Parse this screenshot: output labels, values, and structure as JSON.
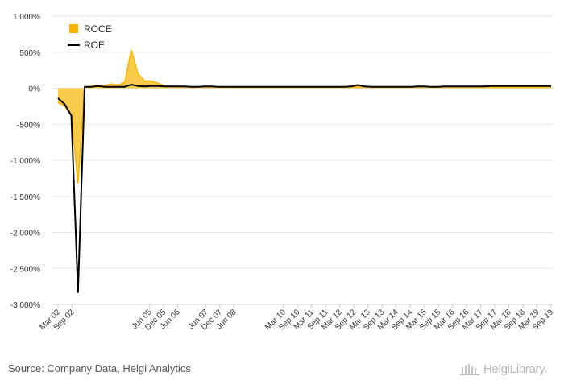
{
  "chart_data": {
    "type": "area",
    "ylim": [
      -3000,
      1000
    ],
    "yticks": [
      1000,
      500,
      0,
      -500,
      -1000,
      -1500,
      -2000,
      -2500,
      -3000
    ],
    "ytick_labels": [
      "1 000%",
      "500%",
      "0%",
      "-500%",
      "-1 000%",
      "-1 500%",
      "-2 000%",
      "-2 500%",
      "-3 000%"
    ],
    "x_start": "Mar 02",
    "xtick_labels": [
      "Mar 02",
      "Sep 02",
      "Jun 05",
      "Dec 05",
      "Jun 06",
      "Jun 07",
      "Dec 07",
      "Jun 08",
      "Mar 10",
      "Sep 10",
      "Mar 11",
      "Sep 11",
      "Mar 12",
      "Sep 12",
      "Mar 13",
      "Sep 13",
      "Mar 14",
      "Sep 14",
      "Mar 15",
      "Sep 15",
      "Mar 16",
      "Sep 16",
      "Mar 17",
      "Sep 17",
      "Mar 18",
      "Sep 18",
      "Mar 19",
      "Sep 19"
    ],
    "legend_position": "top-left",
    "grid": true,
    "series": [
      {
        "name": "ROCE",
        "kind": "area",
        "color": "#f7b500",
        "values": [
          -200,
          -250,
          -380,
          -1320,
          20,
          25,
          45,
          40,
          60,
          45,
          80,
          530,
          200,
          100,
          100,
          70,
          30,
          30,
          25,
          25,
          20,
          20,
          20,
          20,
          20,
          15,
          15,
          15,
          15,
          15,
          15,
          15,
          15,
          15,
          15,
          15,
          15,
          15,
          15,
          15,
          15,
          15,
          15,
          15,
          20,
          20,
          20,
          20,
          20,
          20,
          20,
          20,
          20,
          20,
          20,
          20,
          20,
          20,
          20,
          20,
          20,
          20,
          20,
          20,
          20,
          20,
          20,
          20,
          20,
          20,
          20,
          20,
          20,
          20,
          20
        ]
      },
      {
        "name": "ROE",
        "kind": "line",
        "color": "#000000",
        "values": [
          -140,
          -220,
          -380,
          -2830,
          20,
          20,
          30,
          20,
          20,
          20,
          20,
          50,
          30,
          25,
          30,
          30,
          25,
          25,
          25,
          25,
          20,
          20,
          25,
          25,
          20,
          20,
          20,
          20,
          20,
          20,
          20,
          20,
          20,
          20,
          20,
          20,
          20,
          20,
          20,
          20,
          20,
          20,
          20,
          20,
          25,
          45,
          25,
          20,
          20,
          20,
          20,
          20,
          20,
          20,
          25,
          25,
          20,
          20,
          25,
          25,
          25,
          25,
          25,
          25,
          25,
          30,
          30,
          30,
          30,
          30,
          30,
          30,
          30,
          30,
          30
        ]
      }
    ]
  },
  "footer": {
    "source": "Source: Company Data, Helgi Analytics",
    "logo_text": "HelgiLibrary."
  }
}
